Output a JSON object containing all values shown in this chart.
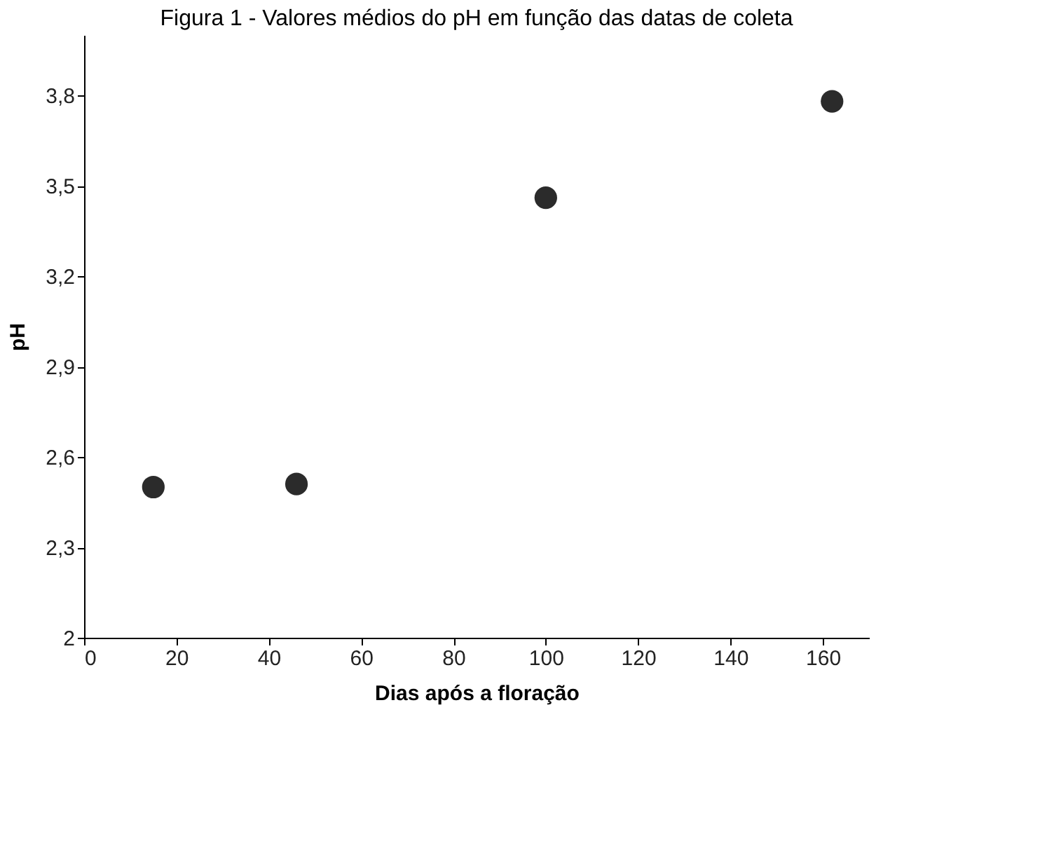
{
  "chart_data": {
    "type": "scatter",
    "title": "Figura 1 - Valores médios do pH em função das datas de coleta",
    "xlabel": "Dias após a floração",
    "ylabel": "pH",
    "x": [
      15,
      46,
      100,
      162
    ],
    "series": [
      {
        "color": "#2b2b2b",
        "values": [
          2.5,
          2.51,
          3.46,
          3.78
        ]
      }
    ],
    "xlim": [
      0,
      170
    ],
    "xticks": [
      0,
      20,
      40,
      60,
      80,
      100,
      120,
      140,
      160
    ],
    "ylim": [
      2,
      4
    ],
    "yticks": [
      {
        "value": 2,
        "label": "2"
      },
      {
        "value": 2.3,
        "label": "2,3"
      },
      {
        "value": 2.6,
        "label": "2,6"
      },
      {
        "value": 2.9,
        "label": "2,9"
      },
      {
        "value": 3.2,
        "label": "3,2"
      },
      {
        "value": 3.5,
        "label": "3,5"
      },
      {
        "value": 3.8,
        "label": "3,8"
      }
    ],
    "grid": false,
    "marker": "circle"
  }
}
